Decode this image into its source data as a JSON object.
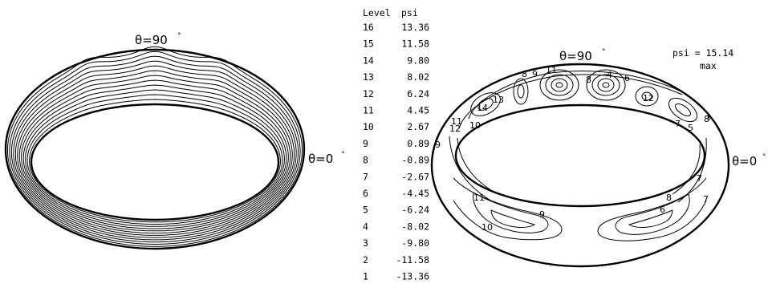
{
  "left_panel": {
    "top_label": "θ=90",
    "right_label": "θ=0",
    "degree_mark": "°"
  },
  "right_panel": {
    "top_label": "θ=90",
    "right_label": "θ=0",
    "degree_mark": "°",
    "psi_max_label": "psi  = 15.14",
    "psi_max_sub": "max",
    "contour_labels": [
      "8",
      "9",
      "11",
      "8",
      "4",
      "6",
      "12",
      "13",
      "14",
      "11",
      "12",
      "10",
      "9",
      "7",
      "5",
      "8",
      "7",
      "8",
      "7",
      "6",
      "11",
      "9",
      "10"
    ]
  },
  "levels_table": {
    "header_level": "Level",
    "header_psi": "psi",
    "rows": [
      {
        "level": "16",
        "psi": "13.36"
      },
      {
        "level": "15",
        "psi": "11.58"
      },
      {
        "level": "14",
        "psi": "9.80"
      },
      {
        "level": "13",
        "psi": "8.02"
      },
      {
        "level": "12",
        "psi": "6.24"
      },
      {
        "level": "11",
        "psi": "4.45"
      },
      {
        "level": "10",
        "psi": "2.67"
      },
      {
        "level": "9",
        "psi": "0.89"
      },
      {
        "level": "8",
        "psi": "-0.89"
      },
      {
        "level": "7",
        "psi": "-2.67"
      },
      {
        "level": "6",
        "psi": "-4.45"
      },
      {
        "level": "5",
        "psi": "-6.24"
      },
      {
        "level": "4",
        "psi": "-8.02"
      },
      {
        "level": "3",
        "psi": "-9.80"
      },
      {
        "level": "2",
        "psi": "-11.58"
      },
      {
        "level": "1",
        "psi": "-13.36"
      }
    ]
  }
}
